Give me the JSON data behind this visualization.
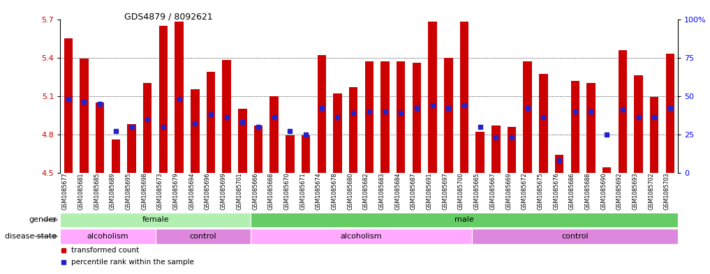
{
  "title": "GDS4879 / 8092621",
  "samples": [
    "GSM1085677",
    "GSM1085681",
    "GSM1085685",
    "GSM1085689",
    "GSM1085695",
    "GSM1085698",
    "GSM1085673",
    "GSM1085679",
    "GSM1085694",
    "GSM1085696",
    "GSM1085699",
    "GSM1085701",
    "GSM1085666",
    "GSM1085668",
    "GSM1085670",
    "GSM1085671",
    "GSM1085674",
    "GSM1085678",
    "GSM1085680",
    "GSM1085682",
    "GSM1085683",
    "GSM1085684",
    "GSM1085687",
    "GSM1085691",
    "GSM1085697",
    "GSM1085700",
    "GSM1085665",
    "GSM1085667",
    "GSM1085669",
    "GSM1085672",
    "GSM1085675",
    "GSM1085676",
    "GSM1085686",
    "GSM1085688",
    "GSM1085690",
    "GSM1085692",
    "GSM1085693",
    "GSM1085702",
    "GSM1085703"
  ],
  "bar_values": [
    5.55,
    5.39,
    5.05,
    4.76,
    4.88,
    5.2,
    5.65,
    5.68,
    5.15,
    5.29,
    5.38,
    5.0,
    4.87,
    5.1,
    4.79,
    4.79,
    5.42,
    5.12,
    5.17,
    5.37,
    5.37,
    5.37,
    5.36,
    5.68,
    5.4,
    5.68,
    4.82,
    4.87,
    4.86,
    5.37,
    5.27,
    4.64,
    5.22,
    5.2,
    4.54,
    5.46,
    5.26,
    5.09,
    5.43
  ],
  "percentile_pct": [
    48,
    46,
    45,
    27,
    30,
    35,
    30,
    48,
    32,
    38,
    36,
    33,
    30,
    36,
    27,
    25,
    42,
    36,
    39,
    40,
    40,
    39,
    42,
    44,
    42,
    44,
    30,
    23,
    23,
    42,
    36,
    8,
    40,
    40,
    25,
    41,
    36,
    36,
    42
  ],
  "ymin": 4.5,
  "ymax": 5.7,
  "yticks": [
    4.5,
    4.8,
    5.1,
    5.4,
    5.7
  ],
  "bar_color": "#cc0000",
  "dot_color": "#2222cc",
  "gender_regions": [
    {
      "label": "female",
      "start": 0,
      "end": 12,
      "color": "#b2f0b2"
    },
    {
      "label": "male",
      "start": 12,
      "end": 39,
      "color": "#66cc66"
    }
  ],
  "disease_regions": [
    {
      "label": "alcoholism",
      "start": 0,
      "end": 6,
      "color": "#ffaaff"
    },
    {
      "label": "control",
      "start": 6,
      "end": 12,
      "color": "#dd88dd"
    },
    {
      "label": "alcoholism",
      "start": 12,
      "end": 26,
      "color": "#ffaaff"
    },
    {
      "label": "control",
      "start": 26,
      "end": 39,
      "color": "#dd88dd"
    }
  ],
  "right_yticks_pct": [
    0,
    25,
    50,
    75,
    100
  ],
  "right_yticklabels": [
    "0",
    "25",
    "50",
    "75",
    "100%"
  ]
}
